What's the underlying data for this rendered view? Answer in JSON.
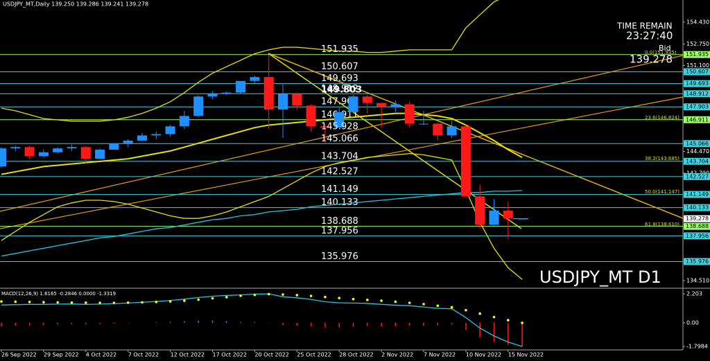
{
  "chart_data": {
    "type": "candlestick",
    "title": "USDJPY_MT,Daily  139.250 139.286 139.241 139.278",
    "categories": [
      "26 Sep 2022",
      null,
      null,
      "29 Sep 2022",
      null,
      null,
      "4 Oct 2022",
      null,
      null,
      "7 Oct 2022",
      null,
      null,
      "12 Oct 2022",
      null,
      null,
      "17 Oct 2022",
      null,
      null,
      "20 Oct 2022",
      null,
      null,
      "25 Oct 2022",
      null,
      null,
      "28 Oct 2022",
      null,
      null,
      "2 Nov 2022",
      null,
      null,
      "7 Nov 2022",
      null,
      null,
      "10 Nov 2022",
      null,
      null,
      "15 Nov 2022",
      null
    ],
    "open": [
      143.3,
      144.7,
      144.8,
      144.1,
      144.4,
      144.7,
      144.8,
      143.9,
      144.6,
      145.1,
      145.3,
      145.7,
      145.8,
      146.4,
      147.2,
      148.7,
      148.9,
      149.0,
      149.9,
      150.2,
      147.7,
      148.9,
      148.0,
      146.4,
      146.3,
      147.5,
      148.7,
      148.2,
      147.9,
      148.1,
      146.6,
      146.6,
      145.7,
      146.4,
      141.0,
      138.8,
      139.9,
      139.25
    ],
    "high": [
      144.8,
      144.9,
      144.9,
      144.6,
      144.8,
      145.0,
      144.9,
      144.7,
      145.1,
      145.4,
      145.9,
      146.0,
      146.5,
      147.6,
      148.8,
      149.1,
      149.1,
      149.9,
      150.3,
      151.9,
      149.7,
      149.0,
      148.1,
      146.6,
      147.9,
      148.8,
      148.8,
      148.2,
      148.4,
      148.3,
      147.6,
      146.7,
      146.8,
      146.6,
      141.9,
      140.8,
      140.6,
      139.286
    ],
    "low": [
      143.2,
      144.5,
      143.9,
      144.0,
      144.3,
      144.5,
      143.5,
      143.9,
      144.6,
      144.8,
      145.3,
      145.4,
      145.6,
      146.2,
      147.1,
      148.5,
      148.8,
      148.9,
      149.7,
      146.2,
      145.5,
      147.7,
      146.0,
      145.1,
      146.3,
      147.4,
      147.4,
      146.3,
      147.5,
      146.3,
      146.5,
      145.3,
      145.5,
      140.9,
      138.5,
      138.8,
      137.7,
      139.241
    ],
    "close": [
      144.7,
      144.8,
      144.1,
      144.4,
      144.7,
      144.8,
      143.9,
      144.6,
      145.1,
      145.3,
      145.7,
      145.8,
      146.4,
      147.2,
      148.7,
      148.9,
      149.0,
      149.9,
      150.2,
      147.7,
      148.9,
      148.0,
      146.4,
      146.3,
      147.5,
      148.7,
      148.2,
      147.9,
      148.1,
      146.6,
      146.6,
      145.7,
      146.4,
      141.0,
      138.8,
      139.9,
      139.3,
      139.278
    ],
    "up_color": "#1e90ff",
    "down_color": "#ff1a1a",
    "ylim": [
      133.97,
      156.14
    ],
    "yticks": [
      {
        "value": 154.43,
        "label": "154.430"
      },
      {
        "value": 152.75,
        "label": "152.750"
      },
      {
        "value": 151.1,
        "label": "151.100"
      },
      {
        "value": 144.47,
        "label": "144.470"
      },
      {
        "value": 142.79,
        "label": "142.790"
      },
      {
        "value": 134.51,
        "label": "134.510"
      }
    ],
    "levels": [
      {
        "value": 151.935,
        "color": "#9aff6a"
      },
      {
        "value": 150.607,
        "color": "#3fd3e0"
      },
      {
        "value": 149.693,
        "color": "#3fd3e0"
      },
      {
        "value": 148.912,
        "color": "#3fd3e0"
      },
      {
        "value": 147.903,
        "color": "#3fd3e0"
      },
      {
        "value": 146.911,
        "color": "#9aff6a"
      },
      {
        "value": 145.066,
        "color": "#3fd3e0"
      },
      {
        "value": 143.704,
        "color": "#3fd3e0"
      },
      {
        "value": 142.527,
        "color": "#3fd3e0"
      },
      {
        "value": 141.149,
        "color": "#3fd3e0"
      },
      {
        "value": 140.133,
        "color": "#3fd3e0"
      },
      {
        "value": 138.688,
        "color": "#9aff6a"
      },
      {
        "value": 137.956,
        "color": "#3fd3e0"
      },
      {
        "value": 135.976,
        "color": "#3fd3e0"
      }
    ],
    "annotations": [
      "149.803",
      "145.928"
    ],
    "fib_labels": [
      "0.0(151.935)",
      "23.6(146.824)",
      "38.2(143.685)",
      "50.0(141.147)",
      "61.8(138.610)"
    ],
    "overlays": [
      {
        "color": "#e8e000",
        "values": [
          147.8,
          147.6,
          147.3,
          147.0,
          146.9,
          146.8,
          146.8,
          146.8,
          146.9,
          147.1,
          147.4,
          147.8,
          148.3,
          149.0,
          149.8,
          150.5,
          151.0,
          151.5,
          152.0,
          152.3,
          152.5,
          152.5,
          152.4,
          152.3,
          152.2,
          152.2,
          152.1,
          152.1,
          152.2,
          152.3,
          152.3,
          152.3,
          152.3,
          154.0,
          155.0,
          156.0,
          156.5,
          157.0
        ]
      },
      {
        "color": "#e8e000",
        "values": [
          142.7,
          142.9,
          143.1,
          143.3,
          143.4,
          143.5,
          143.6,
          143.7,
          143.8,
          143.9,
          144.1,
          144.3,
          144.5,
          144.8,
          145.1,
          145.4,
          145.7,
          146.0,
          146.3,
          146.5,
          146.6,
          146.7,
          146.8,
          146.9,
          147.0,
          147.1,
          147.2,
          147.3,
          147.4,
          147.4,
          147.3,
          147.2,
          147.0,
          146.5,
          145.9,
          145.3,
          144.6,
          144.0
        ]
      },
      {
        "color": "#e8e000",
        "values": [
          137.6,
          138.3,
          139.0,
          139.6,
          140.2,
          140.5,
          140.7,
          140.7,
          140.6,
          140.4,
          140.1,
          139.8,
          139.5,
          139.3,
          139.3,
          139.5,
          139.8,
          140.2,
          140.6,
          141.0,
          141.6,
          142.2,
          142.8,
          143.3,
          143.6,
          143.8,
          144.0,
          144.1,
          144.2,
          144.3,
          144.2,
          144.0,
          143.8,
          141.5,
          139.0,
          137.0,
          135.5,
          134.6
        ]
      },
      {
        "color": "#20c8e0",
        "values": [
          136.4,
          136.6,
          136.8,
          137.0,
          137.2,
          137.4,
          137.6,
          137.8,
          137.9,
          138.1,
          138.3,
          138.5,
          138.6,
          138.8,
          139.0,
          139.2,
          139.3,
          139.5,
          139.6,
          139.8,
          139.9,
          140.0,
          140.2,
          140.3,
          140.4,
          140.5,
          140.6,
          140.7,
          140.8,
          140.9,
          141.0,
          141.1,
          141.2,
          141.3,
          141.3,
          141.4,
          141.4,
          141.45
        ]
      }
    ],
    "time_remain_label": "TIME REMAIN",
    "time_remain": "23:27:40",
    "bid_label": "Bid",
    "bid": 139.278,
    "watermark": "USDJPY_MT D1",
    "macd": {
      "title": "MACD(12,26,9) 1.6165 -0.2846 0.0000 -1.3319",
      "ylim": [
        -2.06,
        2.52
      ],
      "yticks": [
        2.203,
        {
          "value": 0,
          "label": "0.00"
        },
        -1.7984
      ],
      "histogram": [
        -0.27,
        -0.22,
        -0.18,
        -0.16,
        -0.13,
        -0.11,
        -0.13,
        -0.1,
        -0.06,
        -0.03,
        0.01,
        0.04,
        0.08,
        0.12,
        0.16,
        0.16,
        0.13,
        0.07,
        0.06,
        0.02,
        -0.17,
        -0.2,
        -0.26,
        -0.36,
        -0.36,
        -0.3,
        -0.26,
        -0.28,
        -0.26,
        -0.22,
        -0.22,
        -0.2,
        -0.12,
        -0.56,
        -1.1,
        -1.44,
        -1.66,
        -1.8
      ],
      "signal": [
        1.62,
        1.6,
        1.58,
        1.56,
        1.55,
        1.54,
        1.53,
        1.52,
        1.52,
        1.53,
        1.55,
        1.58,
        1.62,
        1.68,
        1.76,
        1.86,
        1.95,
        2.05,
        2.12,
        2.18,
        2.15,
        2.1,
        2.04,
        1.96,
        1.88,
        1.8,
        1.74,
        1.68,
        1.6,
        1.52,
        1.42,
        1.3,
        1.18,
        0.96,
        0.7,
        0.44,
        0.2,
        0.0
      ],
      "line": [
        1.35,
        1.38,
        1.4,
        1.4,
        1.42,
        1.43,
        1.4,
        1.42,
        1.46,
        1.5,
        1.56,
        1.62,
        1.7,
        1.8,
        1.92,
        2.02,
        2.08,
        2.12,
        2.18,
        2.2,
        1.98,
        1.9,
        1.78,
        1.6,
        1.52,
        1.5,
        1.48,
        1.4,
        1.34,
        1.3,
        1.2,
        1.1,
        1.06,
        0.4,
        -0.4,
        -1.0,
        -1.46,
        -1.8
      ],
      "up_color": "#1e90ff",
      "down_color": "#ff1a1a",
      "signal_color": "#ffff00",
      "line_color": "#20c8e0"
    }
  }
}
